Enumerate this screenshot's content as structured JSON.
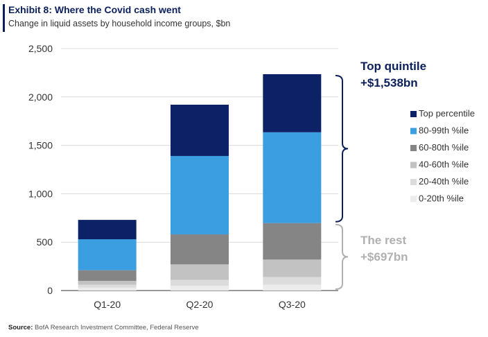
{
  "header": {
    "title": "Exhibit 8: Where the Covid cash went",
    "subtitle": "Change in liquid assets by household income groups, $bn"
  },
  "source": {
    "label": "Source:",
    "text": "BofA Research Investment Committee, Federal Reserve"
  },
  "colors": {
    "title": "#0a1f5c",
    "top_annotation": "#0a1f5c",
    "rest_annotation": "#b0b0b0",
    "gridline": "#d9d9d9"
  },
  "chart_data": {
    "type": "bar",
    "stacked": true,
    "categories": [
      "Q1-20",
      "Q2-20",
      "Q3-20"
    ],
    "ylim": [
      0,
      2500
    ],
    "yticks": [
      0,
      500,
      1000,
      1500,
      2000,
      2500
    ],
    "ytick_labels": [
      "0",
      "500",
      "1,000",
      "1,500",
      "2,000",
      "2,500"
    ],
    "grid": true,
    "legend_position": "right",
    "series": [
      {
        "name": "0-20th %ile",
        "color": "#ececec",
        "values": [
          30,
          50,
          60
        ]
      },
      {
        "name": "20-40th %ile",
        "color": "#dcdcdc",
        "values": [
          30,
          60,
          80
        ]
      },
      {
        "name": "40-60th %ile",
        "color": "#c2c2c2",
        "values": [
          40,
          160,
          180
        ]
      },
      {
        "name": "60-80th %ile",
        "color": "#858585",
        "values": [
          110,
          310,
          377
        ]
      },
      {
        "name": "80-99th %ile",
        "color": "#3a9ee0",
        "values": [
          320,
          810,
          938
        ]
      },
      {
        "name": "Top percentile",
        "color": "#0d2266",
        "values": [
          200,
          530,
          600
        ]
      }
    ],
    "annotations": [
      {
        "line1": "Top quintile",
        "line2": "+$1,538bn",
        "bracket_range": [
          697,
          2235
        ],
        "color": "#0a1f5c"
      },
      {
        "line1": "The rest",
        "line2": "+$697bn",
        "bracket_range": [
          0,
          697
        ],
        "color": "#b0b0b0"
      }
    ]
  }
}
